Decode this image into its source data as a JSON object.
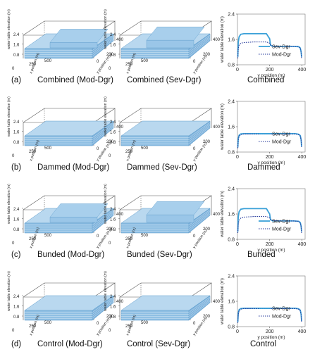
{
  "panel_letters": [
    "(a)",
    "(b)",
    "(c)",
    "(d)"
  ],
  "row_captions": [
    {
      "left": "Combined (Mod-Dgr)",
      "middle": "Combined (Sev-Dgr)",
      "right": "Combined"
    },
    {
      "left": "Dammed (Mod-Dgr)",
      "middle": "Dammed (Sev-Dgr)",
      "right": "Dammed"
    },
    {
      "left": "Bunded (Mod-Dgr)",
      "middle": "Bunded (Sev-Dgr)",
      "right": "Bunded"
    },
    {
      "left": "Control (Mod-Dgr)",
      "middle": "Control (Sev-Dgr)",
      "right": "Control"
    }
  ],
  "surface_labels": {
    "x_axis": "x position (m)",
    "y_axis": "y position (m)",
    "z_axis": "water table elevation (m)"
  },
  "colors": {
    "surface": "#8fbfe3",
    "surface_line": "#5d9ccc",
    "sev_line": "#3aa0d8",
    "mod_line": "#2a3e9e"
  },
  "chart_data": [
    {
      "type": "line",
      "title": "Combined",
      "xlabel": "y position (m)",
      "ylabel": "water table elevation (m)",
      "xlim": [
        0,
        420
      ],
      "ylim": [
        0.8,
        2.4
      ],
      "xticks": [
        0,
        200,
        400
      ],
      "yticks": [
        0.8,
        1.6,
        2.4
      ],
      "xtick_labels": [
        "0",
        "200",
        "400"
      ],
      "ytick_labels": [
        "0.8",
        "1.6",
        "2.4"
      ],
      "legend": "bottom-right",
      "x": [
        2,
        5,
        10,
        20,
        40,
        100,
        150,
        180,
        200,
        205,
        220,
        260,
        300,
        350,
        380,
        390,
        395,
        398
      ],
      "series": [
        {
          "name": "Sev-Dgr",
          "style": "solid",
          "values": [
            1.05,
            1.5,
            1.68,
            1.76,
            1.78,
            1.78,
            1.78,
            1.78,
            1.62,
            1.42,
            1.38,
            1.38,
            1.38,
            1.38,
            1.37,
            1.33,
            1.22,
            1.05
          ]
        },
        {
          "name": "Mod-Dgr",
          "style": "dotted",
          "values": [
            1.0,
            1.3,
            1.42,
            1.48,
            1.5,
            1.52,
            1.52,
            1.52,
            1.48,
            1.42,
            1.39,
            1.38,
            1.38,
            1.38,
            1.37,
            1.32,
            1.2,
            1.0
          ]
        }
      ]
    },
    {
      "type": "line",
      "title": "Dammed",
      "xlabel": "y position (m)",
      "ylabel": "water table elevation (m)",
      "xlim": [
        0,
        420
      ],
      "ylim": [
        0.8,
        2.4
      ],
      "xticks": [
        0,
        200,
        400
      ],
      "yticks": [
        0.8,
        1.6,
        2.4
      ],
      "xtick_labels": [
        "0",
        "200",
        "400"
      ],
      "ytick_labels": [
        "0.8",
        "1.6",
        "2.4"
      ],
      "legend": "bottom-right",
      "x": [
        2,
        5,
        10,
        20,
        40,
        100,
        200,
        300,
        360,
        380,
        390,
        395,
        398
      ],
      "series": [
        {
          "name": "Sev-Dgr",
          "style": "solid",
          "values": [
            0.95,
            1.22,
            1.33,
            1.37,
            1.38,
            1.38,
            1.38,
            1.38,
            1.38,
            1.36,
            1.32,
            1.2,
            0.98
          ]
        },
        {
          "name": "Mod-Dgr",
          "style": "dotted",
          "values": [
            0.92,
            1.18,
            1.3,
            1.35,
            1.37,
            1.37,
            1.37,
            1.37,
            1.37,
            1.35,
            1.3,
            1.18,
            0.95
          ]
        }
      ]
    },
    {
      "type": "line",
      "title": "Bunded",
      "xlabel": "y position (m)",
      "ylabel": "water table elevation (m)",
      "xlim": [
        0,
        420
      ],
      "ylim": [
        0.8,
        2.4
      ],
      "xticks": [
        0,
        200,
        400
      ],
      "yticks": [
        0.8,
        1.6,
        2.4
      ],
      "xtick_labels": [
        "0",
        "200",
        "400"
      ],
      "ytick_labels": [
        "0.8",
        "1.6",
        "2.4"
      ],
      "legend": "bottom-right",
      "x": [
        2,
        5,
        10,
        20,
        40,
        100,
        150,
        180,
        200,
        205,
        220,
        260,
        300,
        350,
        380,
        390,
        395,
        398
      ],
      "series": [
        {
          "name": "Sev-Dgr",
          "style": "solid",
          "values": [
            1.05,
            1.5,
            1.67,
            1.75,
            1.77,
            1.77,
            1.77,
            1.77,
            1.6,
            1.42,
            1.38,
            1.38,
            1.38,
            1.38,
            1.37,
            1.33,
            1.22,
            1.05
          ]
        },
        {
          "name": "Mod-Dgr",
          "style": "dotted",
          "values": [
            1.0,
            1.28,
            1.4,
            1.47,
            1.5,
            1.52,
            1.52,
            1.52,
            1.48,
            1.42,
            1.39,
            1.38,
            1.38,
            1.38,
            1.37,
            1.32,
            1.2,
            1.0
          ]
        }
      ]
    },
    {
      "type": "line",
      "title": "Control",
      "xlabel": "y position (m)",
      "ylabel": "water table elevation (m)",
      "xlim": [
        0,
        420
      ],
      "ylim": [
        0.8,
        2.4
      ],
      "xticks": [
        0,
        200,
        400
      ],
      "yticks": [
        0.8,
        1.6,
        2.4
      ],
      "xtick_labels": [
        "0",
        "200",
        "400"
      ],
      "ytick_labels": [
        "0.8",
        "1.6",
        "2.4"
      ],
      "legend": "bottom-right",
      "x": [
        2,
        5,
        10,
        20,
        40,
        100,
        200,
        300,
        360,
        380,
        390,
        395,
        398
      ],
      "series": [
        {
          "name": "Sev-Dgr",
          "style": "solid",
          "values": [
            0.95,
            1.22,
            1.33,
            1.37,
            1.38,
            1.38,
            1.38,
            1.38,
            1.38,
            1.36,
            1.32,
            1.2,
            0.98
          ]
        },
        {
          "name": "Mod-Dgr",
          "style": "dotted",
          "values": [
            0.92,
            1.18,
            1.3,
            1.35,
            1.37,
            1.37,
            1.37,
            1.37,
            1.37,
            1.35,
            1.3,
            1.18,
            0.95
          ]
        }
      ]
    }
  ],
  "surface_data": [
    {
      "z_ticks": [
        "2.4",
        "1.6",
        "0.8"
      ],
      "x_ticks": [
        "0",
        "250",
        "500"
      ],
      "y_ticks": [
        "0",
        "200",
        "400"
      ],
      "hump_ratio": 0.45,
      "hump_style": "step"
    },
    {
      "z_ticks": [
        "2.4",
        "1.6",
        "0.8"
      ],
      "x_ticks": [
        "0",
        "250",
        "500"
      ],
      "y_ticks": [
        "0",
        "200",
        "400"
      ],
      "hump_ratio": 0.85,
      "hump_style": "step"
    },
    {
      "z_ticks": [
        "2.4",
        "1.6",
        "0.8"
      ],
      "x_ticks": [
        "0",
        "250",
        "500"
      ],
      "y_ticks": [
        "0",
        "200",
        "400"
      ],
      "hump_ratio": 0.0,
      "hump_style": "flat"
    },
    {
      "z_ticks": [
        "2.4",
        "1.6",
        "0.8"
      ],
      "x_ticks": [
        "0",
        "250",
        "500"
      ],
      "y_ticks": [
        "0",
        "200",
        "400"
      ],
      "hump_ratio": 0.0,
      "hump_style": "flat"
    },
    {
      "z_ticks": [
        "2.4",
        "1.6",
        "0.8"
      ],
      "x_ticks": [
        "0",
        "250",
        "500"
      ],
      "y_ticks": [
        "0",
        "200",
        "400"
      ],
      "hump_ratio": 0.45,
      "hump_style": "dome"
    },
    {
      "z_ticks": [
        "2.4",
        "1.6",
        "0.8"
      ],
      "x_ticks": [
        "0",
        "250",
        "500"
      ],
      "y_ticks": [
        "0",
        "200",
        "400"
      ],
      "hump_ratio": 0.85,
      "hump_style": "step"
    },
    {
      "z_ticks": [
        "2.4",
        "1.6",
        "0.8"
      ],
      "x_ticks": [
        "0",
        "250",
        "500"
      ],
      "y_ticks": [
        "0",
        "200",
        "400"
      ],
      "hump_ratio": 0.0,
      "hump_style": "flat"
    },
    {
      "z_ticks": [
        "2.4",
        "1.6",
        "0.8"
      ],
      "x_ticks": [
        "0",
        "250",
        "500"
      ],
      "y_ticks": [
        "0",
        "200",
        "400"
      ],
      "hump_ratio": 0.0,
      "hump_style": "flat"
    }
  ]
}
